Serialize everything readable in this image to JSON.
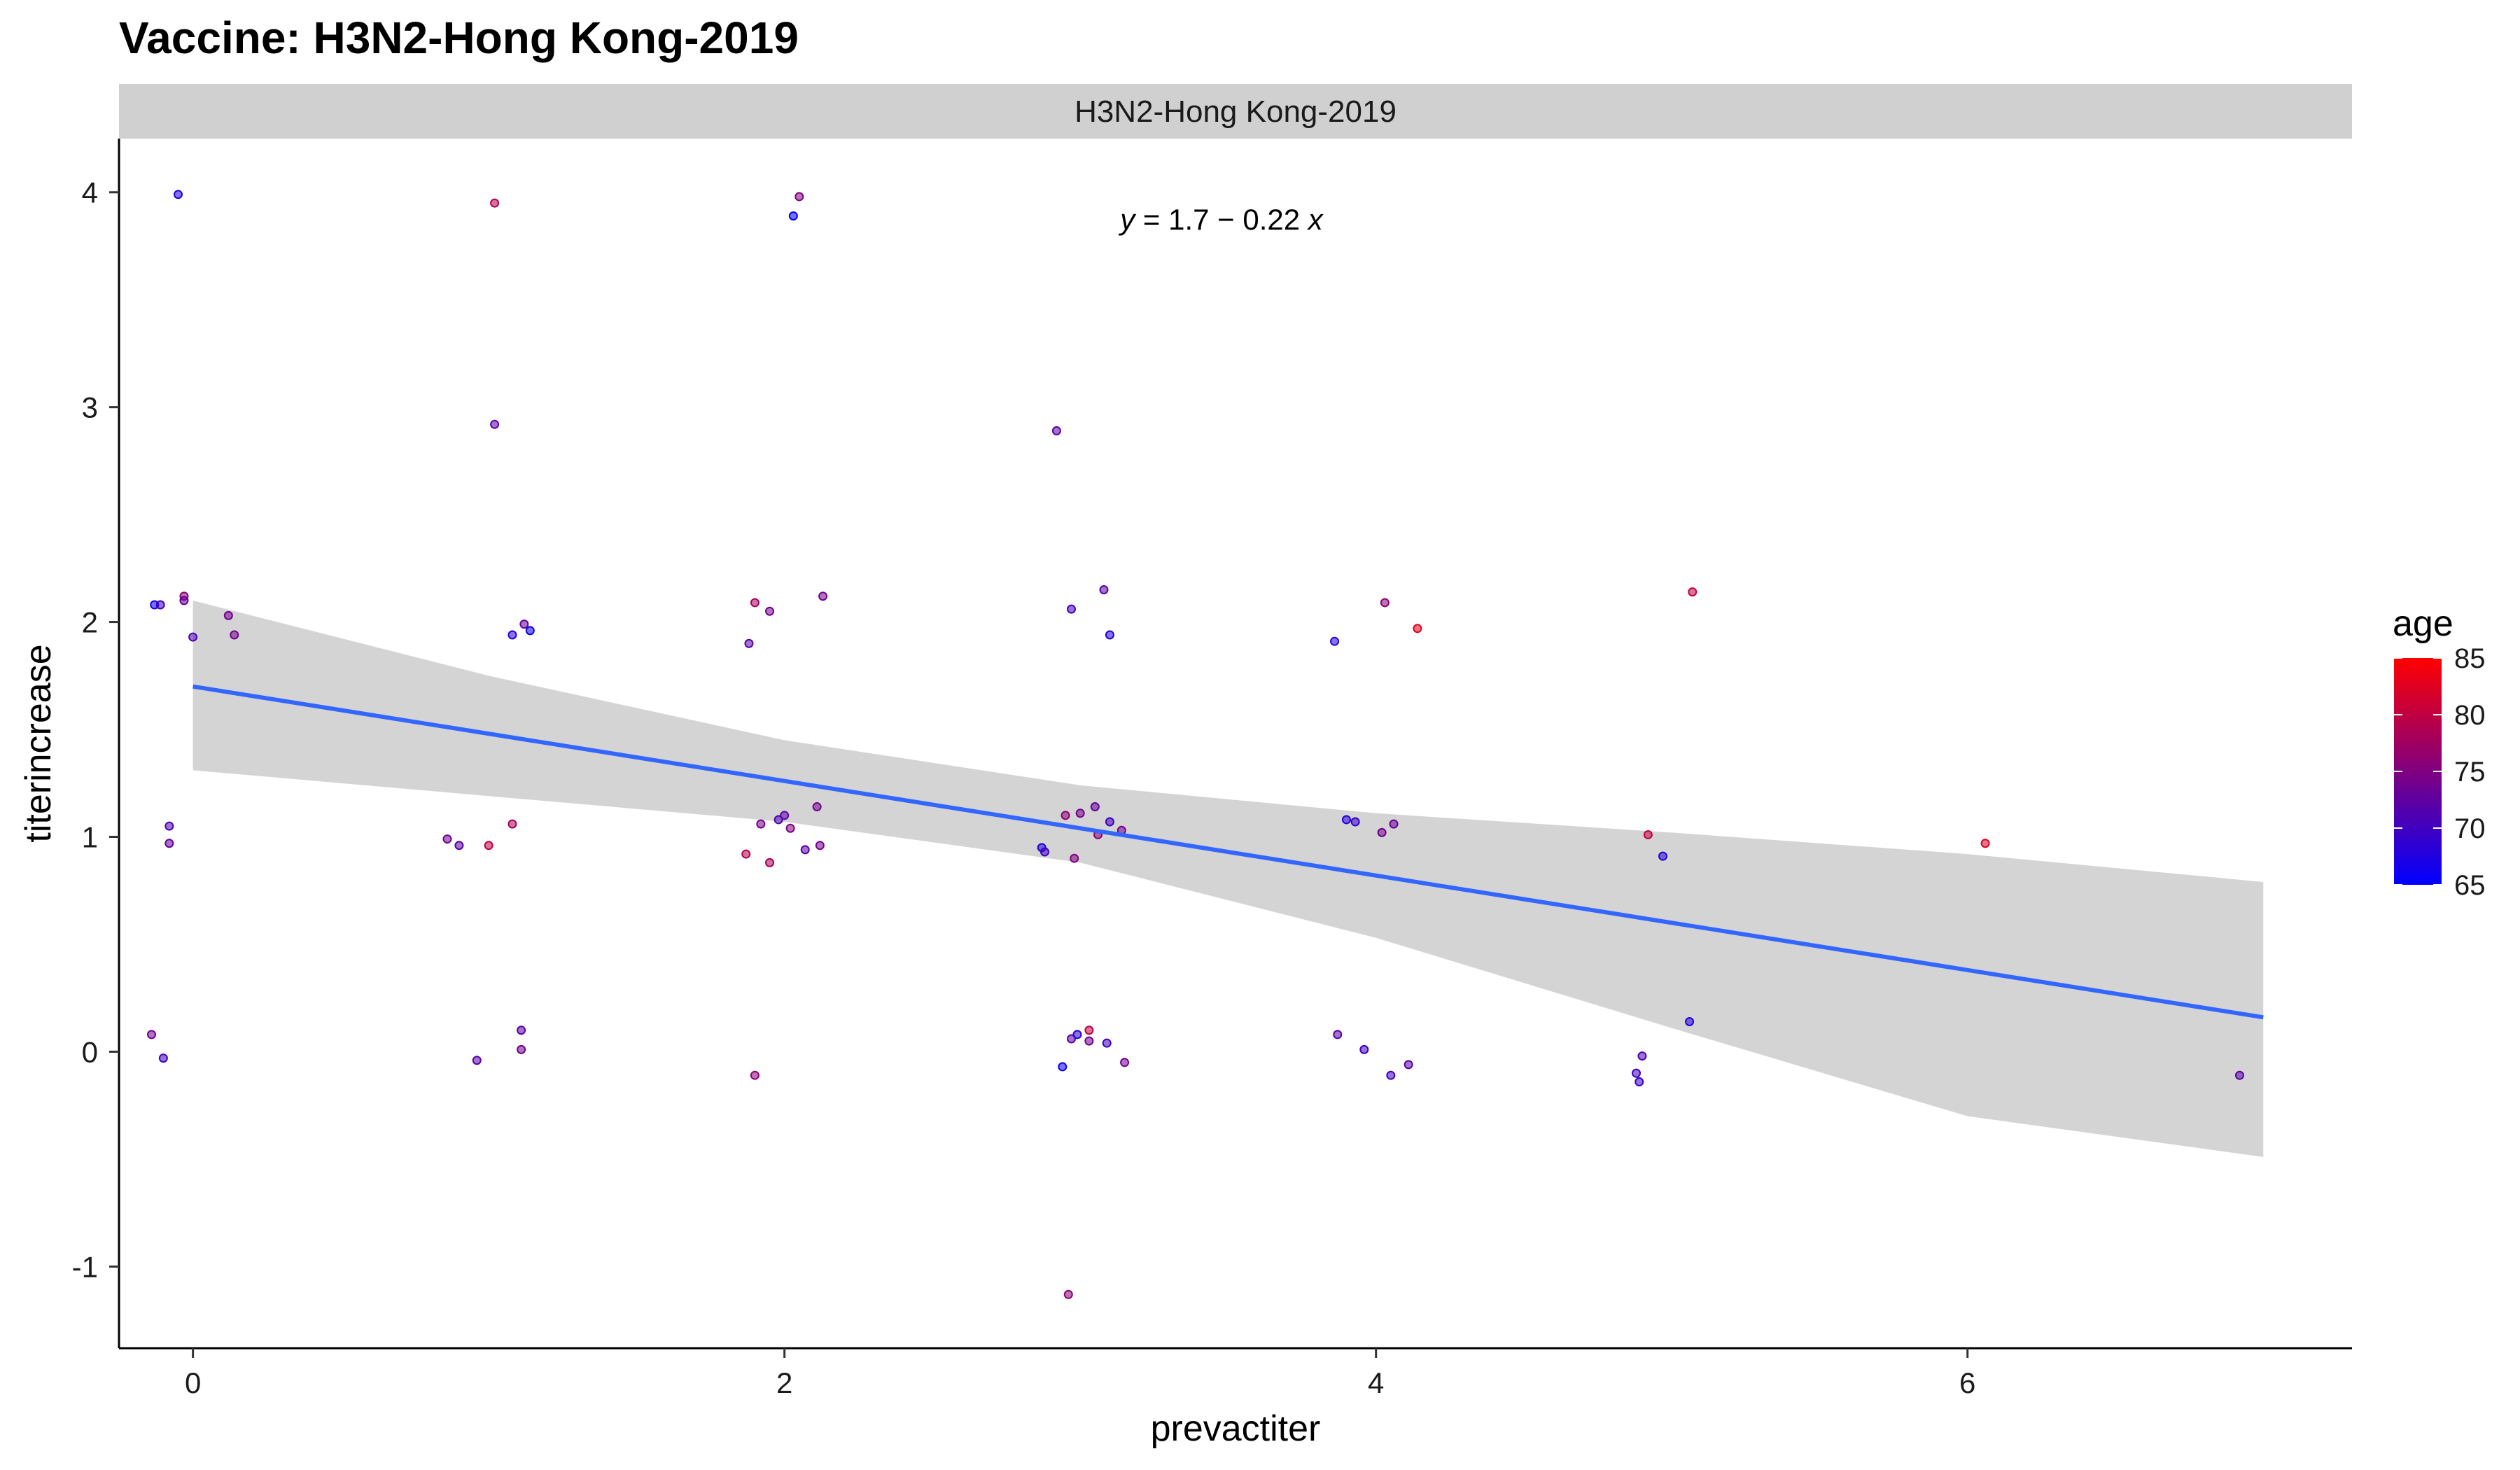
{
  "chart_data": {
    "type": "scatter",
    "title": "Vaccine: H3N2-Hong Kong-2019",
    "facet_label": "H3N2-Hong Kong-2019",
    "xlabel": "prevactiter",
    "ylabel": "titerincrease",
    "xlim": [
      -0.25,
      7.3
    ],
    "ylim": [
      -1.38,
      4.25
    ],
    "xticks": [
      0,
      2,
      4,
      6
    ],
    "yticks": [
      -1,
      0,
      1,
      2,
      3,
      4
    ],
    "equation": {
      "prefix": "y",
      "rest": " = 1.7 − 0.22 ",
      "suffix": "x"
    },
    "regression": {
      "intercept": 1.7,
      "slope": -0.22,
      "x_range": [
        0,
        7
      ]
    },
    "confidence_band": [
      {
        "x": 0,
        "lo": 1.31,
        "hi": 2.1
      },
      {
        "x": 1,
        "lo": 1.19,
        "hi": 1.75
      },
      {
        "x": 2,
        "lo": 1.07,
        "hi": 1.45
      },
      {
        "x": 3,
        "lo": 0.88,
        "hi": 1.24
      },
      {
        "x": 4,
        "lo": 0.53,
        "hi": 1.11
      },
      {
        "x": 5,
        "lo": 0.11,
        "hi": 1.02
      },
      {
        "x": 6,
        "lo": -0.3,
        "hi": 0.92
      },
      {
        "x": 7,
        "lo": -0.49,
        "hi": 0.79
      }
    ],
    "color_scale": {
      "title": "age",
      "min": 65,
      "max": 85,
      "low_color": "#0000ff",
      "high_color": "#ff0000",
      "ticks": [
        65,
        70,
        75,
        80,
        85
      ]
    },
    "line_color": "#3366ff",
    "band_color": "#d4d4d4",
    "points": [
      {
        "x": -0.05,
        "y": 3.99,
        "age": 67
      },
      {
        "x": 1.02,
        "y": 3.95,
        "age": 79
      },
      {
        "x": 2.05,
        "y": 3.98,
        "age": 75
      },
      {
        "x": 2.03,
        "y": 3.89,
        "age": 65
      },
      {
        "x": 1.02,
        "y": 2.92,
        "age": 72
      },
      {
        "x": 2.92,
        "y": 2.89,
        "age": 72
      },
      {
        "x": -0.13,
        "y": 2.08,
        "age": 66
      },
      {
        "x": -0.11,
        "y": 2.08,
        "age": 70
      },
      {
        "x": -0.03,
        "y": 2.12,
        "age": 76
      },
      {
        "x": -0.03,
        "y": 2.1,
        "age": 73
      },
      {
        "x": 0.12,
        "y": 2.03,
        "age": 74
      },
      {
        "x": 0.14,
        "y": 1.94,
        "age": 74
      },
      {
        "x": 0.0,
        "y": 1.93,
        "age": 71
      },
      {
        "x": 1.08,
        "y": 1.94,
        "age": 68
      },
      {
        "x": 1.12,
        "y": 1.99,
        "age": 73
      },
      {
        "x": 1.14,
        "y": 1.96,
        "age": 66
      },
      {
        "x": 1.9,
        "y": 2.09,
        "age": 78
      },
      {
        "x": 1.95,
        "y": 2.05,
        "age": 74
      },
      {
        "x": 2.13,
        "y": 2.12,
        "age": 74
      },
      {
        "x": 1.88,
        "y": 1.9,
        "age": 72
      },
      {
        "x": 2.97,
        "y": 2.06,
        "age": 70
      },
      {
        "x": 3.08,
        "y": 2.15,
        "age": 72
      },
      {
        "x": 3.1,
        "y": 1.94,
        "age": 68
      },
      {
        "x": 3.86,
        "y": 1.91,
        "age": 68
      },
      {
        "x": 4.03,
        "y": 2.09,
        "age": 76
      },
      {
        "x": 4.14,
        "y": 1.97,
        "age": 83
      },
      {
        "x": 5.07,
        "y": 2.14,
        "age": 80
      },
      {
        "x": -0.08,
        "y": 1.05,
        "age": 71
      },
      {
        "x": -0.08,
        "y": 0.97,
        "age": 73
      },
      {
        "x": 0.86,
        "y": 0.99,
        "age": 74
      },
      {
        "x": 0.9,
        "y": 0.96,
        "age": 72
      },
      {
        "x": 1.0,
        "y": 0.96,
        "age": 80
      },
      {
        "x": 1.08,
        "y": 1.06,
        "age": 78
      },
      {
        "x": 1.92,
        "y": 1.06,
        "age": 74
      },
      {
        "x": 1.98,
        "y": 1.08,
        "age": 71
      },
      {
        "x": 2.0,
        "y": 1.1,
        "age": 72
      },
      {
        "x": 2.02,
        "y": 1.04,
        "age": 75
      },
      {
        "x": 2.11,
        "y": 1.14,
        "age": 74
      },
      {
        "x": 2.12,
        "y": 0.96,
        "age": 74
      },
      {
        "x": 2.07,
        "y": 0.94,
        "age": 72
      },
      {
        "x": 1.87,
        "y": 0.92,
        "age": 79
      },
      {
        "x": 1.95,
        "y": 0.88,
        "age": 78
      },
      {
        "x": 2.87,
        "y": 0.95,
        "age": 68
      },
      {
        "x": 2.88,
        "y": 0.93,
        "age": 70
      },
      {
        "x": 2.95,
        "y": 1.1,
        "age": 76
      },
      {
        "x": 3.0,
        "y": 1.11,
        "age": 74
      },
      {
        "x": 3.05,
        "y": 1.14,
        "age": 73
      },
      {
        "x": 3.06,
        "y": 1.01,
        "age": 76
      },
      {
        "x": 3.1,
        "y": 1.07,
        "age": 70
      },
      {
        "x": 3.14,
        "y": 1.03,
        "age": 74
      },
      {
        "x": 2.98,
        "y": 0.9,
        "age": 75
      },
      {
        "x": 3.9,
        "y": 1.08,
        "age": 68
      },
      {
        "x": 3.93,
        "y": 1.07,
        "age": 69
      },
      {
        "x": 4.02,
        "y": 1.02,
        "age": 74
      },
      {
        "x": 4.06,
        "y": 1.06,
        "age": 73
      },
      {
        "x": 4.92,
        "y": 1.01,
        "age": 80
      },
      {
        "x": 4.97,
        "y": 0.91,
        "age": 68
      },
      {
        "x": 6.06,
        "y": 0.97,
        "age": 82
      },
      {
        "x": -0.14,
        "y": 0.08,
        "age": 74
      },
      {
        "x": -0.1,
        "y": -0.03,
        "age": 70
      },
      {
        "x": 0.96,
        "y": -0.04,
        "age": 72
      },
      {
        "x": 1.11,
        "y": 0.1,
        "age": 72
      },
      {
        "x": 1.11,
        "y": 0.01,
        "age": 74
      },
      {
        "x": 1.9,
        "y": -0.11,
        "age": 76
      },
      {
        "x": 2.94,
        "y": -0.07,
        "age": 66
      },
      {
        "x": 2.97,
        "y": 0.06,
        "age": 72
      },
      {
        "x": 2.99,
        "y": 0.08,
        "age": 68
      },
      {
        "x": 3.03,
        "y": 0.1,
        "age": 80
      },
      {
        "x": 3.03,
        "y": 0.05,
        "age": 74
      },
      {
        "x": 3.09,
        "y": 0.04,
        "age": 70
      },
      {
        "x": 3.15,
        "y": -0.05,
        "age": 74
      },
      {
        "x": 3.87,
        "y": 0.08,
        "age": 72
      },
      {
        "x": 3.96,
        "y": 0.01,
        "age": 70
      },
      {
        "x": 4.05,
        "y": -0.11,
        "age": 70
      },
      {
        "x": 4.11,
        "y": -0.06,
        "age": 72
      },
      {
        "x": 4.88,
        "y": -0.1,
        "age": 70
      },
      {
        "x": 4.89,
        "y": -0.14,
        "age": 69
      },
      {
        "x": 4.9,
        "y": -0.02,
        "age": 71
      },
      {
        "x": 5.06,
        "y": 0.14,
        "age": 68
      },
      {
        "x": 6.92,
        "y": -0.11,
        "age": 72
      },
      {
        "x": 2.96,
        "y": -1.13,
        "age": 76
      }
    ]
  }
}
